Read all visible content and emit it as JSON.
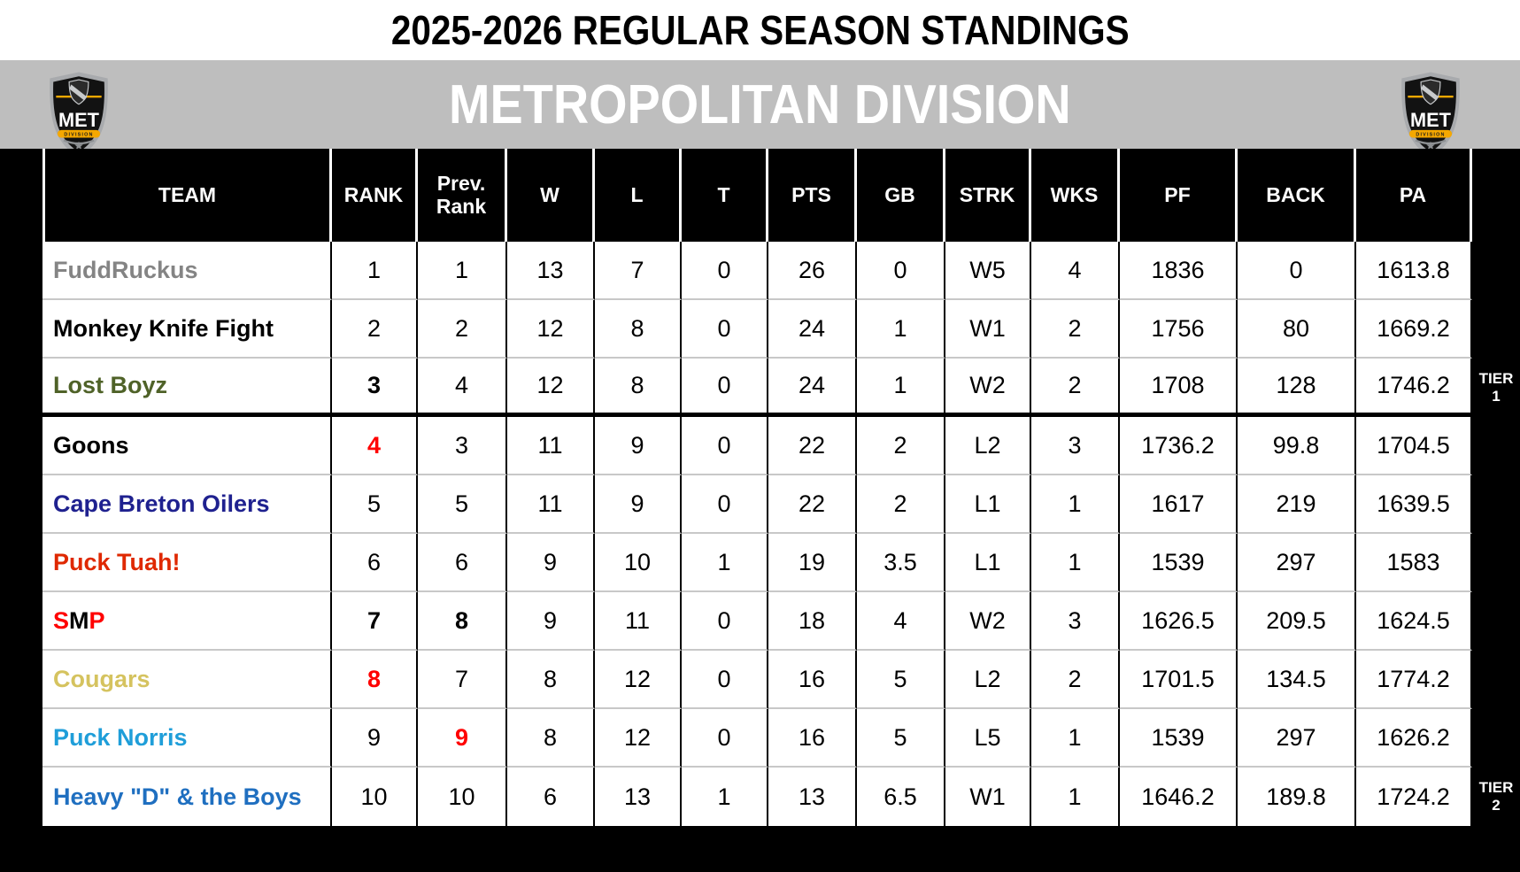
{
  "title": "2025-2026 REGULAR SEASON STANDINGS",
  "division": {
    "name": "METROPOLITAN DIVISION",
    "logo_text": {
      "met": "MET",
      "division": "DIVISION",
      "tm": "™"
    }
  },
  "colors": {
    "band_gray": "#BEBEBE",
    "header_black": "#000000",
    "accent_red": "#FF0000",
    "logo_gold": "#F5A800",
    "logo_silver": "#A8AAAD",
    "row_line_gray": "#C8C8C8"
  },
  "table": {
    "headers": [
      {
        "key": "team",
        "label": "TEAM"
      },
      {
        "key": "rank",
        "label": "RANK"
      },
      {
        "key": "prev",
        "label": "Prev. Rank"
      },
      {
        "key": "w",
        "label": "W"
      },
      {
        "key": "l",
        "label": "L"
      },
      {
        "key": "t",
        "label": "T"
      },
      {
        "key": "pts",
        "label": "PTS"
      },
      {
        "key": "gb",
        "label": "GB"
      },
      {
        "key": "strk",
        "label": "STRK"
      },
      {
        "key": "wks",
        "label": "WKS"
      },
      {
        "key": "pf",
        "label": "PF"
      },
      {
        "key": "back",
        "label": "BACK"
      },
      {
        "key": "pa",
        "label": "PA"
      }
    ],
    "rows": [
      {
        "team": [
          {
            "text": "FuddRuckus",
            "color": "#848484"
          }
        ],
        "rank": "1",
        "prev": "1",
        "w": "13",
        "l": "7",
        "t": "0",
        "pts": "26",
        "gb": "0",
        "strk": "W5",
        "wks": "4",
        "pf": "1836",
        "back": "0",
        "pa": "1613.8",
        "styles": {}
      },
      {
        "team": [
          {
            "text": "Monkey Knife Fight",
            "color": "#000000"
          }
        ],
        "rank": "2",
        "prev": "2",
        "w": "12",
        "l": "8",
        "t": "0",
        "pts": "24",
        "gb": "1",
        "strk": "W1",
        "wks": "2",
        "pf": "1756",
        "back": "80",
        "pa": "1669.2",
        "styles": {}
      },
      {
        "team": [
          {
            "text": "Lost Boyz",
            "color": "#4F6228"
          }
        ],
        "rank": "3",
        "prev": "4",
        "w": "12",
        "l": "8",
        "t": "0",
        "pts": "24",
        "gb": "1",
        "strk": "W2",
        "wks": "2",
        "pf": "1708",
        "back": "128",
        "pa": "1746.2",
        "styles": {
          "rank": "b"
        }
      },
      {
        "team": [
          {
            "text": "Goons",
            "color": "#000000"
          }
        ],
        "rank": "4",
        "prev": "3",
        "w": "11",
        "l": "9",
        "t": "0",
        "pts": "22",
        "gb": "2",
        "strk": "L2",
        "wks": "3",
        "pf": "1736.2",
        "back": "99.8",
        "pa": "1704.5",
        "styles": {
          "rank": "br"
        }
      },
      {
        "team": [
          {
            "text": "Cape Breton Oilers",
            "color": "#1F218F"
          }
        ],
        "rank": "5",
        "prev": "5",
        "w": "11",
        "l": "9",
        "t": "0",
        "pts": "22",
        "gb": "2",
        "strk": "L1",
        "wks": "1",
        "pf": "1617",
        "back": "219",
        "pa": "1639.5",
        "styles": {}
      },
      {
        "team": [
          {
            "text": "Puck Tuah!",
            "color": "#DF2800"
          }
        ],
        "rank": "6",
        "prev": "6",
        "w": "9",
        "l": "10",
        "t": "1",
        "pts": "19",
        "gb": "3.5",
        "strk": "L1",
        "wks": "1",
        "pf": "1539",
        "back": "297",
        "pa": "1583",
        "styles": {}
      },
      {
        "team": [
          {
            "text": "S",
            "color": "#FF0000"
          },
          {
            "text": "M",
            "color": "#000000"
          },
          {
            "text": "P",
            "color": "#FF0000"
          }
        ],
        "rank": "7",
        "prev": "8",
        "w": "9",
        "l": "11",
        "t": "0",
        "pts": "18",
        "gb": "4",
        "strk": "W2",
        "wks": "3",
        "pf": "1626.5",
        "back": "209.5",
        "pa": "1624.5",
        "styles": {
          "rank": "b",
          "prev": "b"
        }
      },
      {
        "team": [
          {
            "text": "Cougars",
            "color": "#D5C35F"
          }
        ],
        "rank": "8",
        "prev": "7",
        "w": "8",
        "l": "12",
        "t": "0",
        "pts": "16",
        "gb": "5",
        "strk": "L2",
        "wks": "2",
        "pf": "1701.5",
        "back": "134.5",
        "pa": "1774.2",
        "styles": {
          "rank": "br"
        }
      },
      {
        "team": [
          {
            "text": "Puck Norris",
            "color": "#1F9ED9"
          }
        ],
        "rank": "9",
        "prev": "9",
        "w": "8",
        "l": "12",
        "t": "0",
        "pts": "16",
        "gb": "5",
        "strk": "L5",
        "wks": "1",
        "pf": "1539",
        "back": "297",
        "pa": "1626.2",
        "styles": {
          "prev": "br"
        }
      },
      {
        "team": [
          {
            "text": "Heavy \"D\" & the Boys",
            "color": "#1F6FC0"
          }
        ],
        "rank": "10",
        "prev": "10",
        "w": "6",
        "l": "13",
        "t": "1",
        "pts": "13",
        "gb": "6.5",
        "strk": "W1",
        "wks": "1",
        "pf": "1646.2",
        "back": "189.8",
        "pa": "1724.2",
        "styles": {}
      }
    ],
    "tier_labels": [
      {
        "line1": "TIER",
        "line2": "1"
      },
      {
        "line1": "TIER",
        "line2": "2"
      }
    ]
  }
}
